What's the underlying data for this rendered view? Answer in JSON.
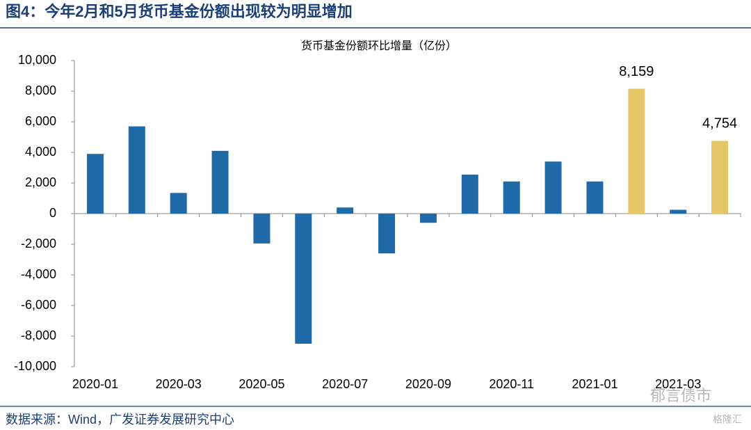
{
  "chart_data": {
    "type": "bar",
    "title": "图4：今年2月和5月货币基金份额出现较为明显增加",
    "subtitle": "货币基金份额环比增量（亿份）",
    "categories": [
      "2020-01",
      null,
      "2020-03",
      null,
      "2020-05",
      null,
      "2020-07",
      null,
      "2020-09",
      null,
      "2020-11",
      null,
      "2021-01",
      null,
      "2021-03",
      null
    ],
    "values": [
      3900,
      5700,
      1350,
      4100,
      -1950,
      -8500,
      400,
      -2600,
      -600,
      2550,
      2100,
      3400,
      2100,
      8159,
      250,
      4754
    ],
    "value_labels": [
      null,
      null,
      null,
      null,
      null,
      null,
      null,
      null,
      null,
      null,
      null,
      null,
      null,
      "8,159",
      null,
      "4,754"
    ],
    "colors": [
      "#1f6aa8",
      "#1f6aa8",
      "#1f6aa8",
      "#1f6aa8",
      "#1f6aa8",
      "#1f6aa8",
      "#1f6aa8",
      "#1f6aa8",
      "#1f6aa8",
      "#1f6aa8",
      "#1f6aa8",
      "#1f6aa8",
      "#1f6aa8",
      "#e6c564",
      "#1f6aa8",
      "#e6c564"
    ],
    "ylim": [
      -10000,
      10000
    ],
    "yticks": [
      {
        "value": -10000,
        "label": "-10,000"
      },
      {
        "value": -8000,
        "label": "-8,000"
      },
      {
        "value": -6000,
        "label": "-6,000"
      },
      {
        "value": -4000,
        "label": "-4,000"
      },
      {
        "value": -2000,
        "label": "-2,000"
      },
      0,
      {
        "value": 2000,
        "label": "2,000"
      },
      {
        "value": 4000,
        "label": "4,000"
      },
      {
        "value": 6000,
        "label": "6,000"
      },
      {
        "value": 8000,
        "label": "8,000"
      },
      {
        "value": 10000,
        "label": "10,000"
      }
    ],
    "grid": false,
    "source": "数据来源：Wind，广发证券发展研究中心",
    "watermarks": [
      "郁言债市",
      "格隆汇"
    ]
  }
}
